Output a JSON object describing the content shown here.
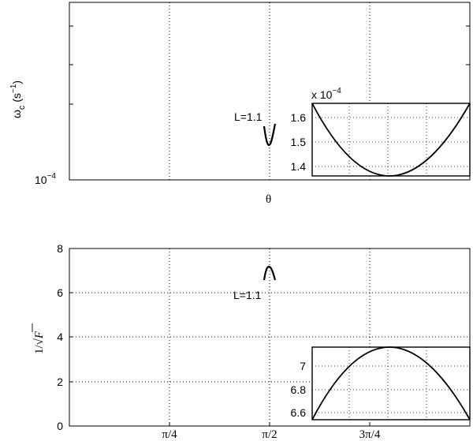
{
  "chart_data": [
    {
      "type": "line",
      "id": "top",
      "ylabel_main": "ω",
      "ylabel_sub": "c",
      "ylabel_unit": " (s",
      "ylabel_exp": "−1",
      "ylabel_close": ")",
      "xlabel": "θ",
      "y_scale": "log",
      "y_tick_label_base": "10",
      "y_tick_label_exp": "−4",
      "grid": true,
      "annotation": "L=1.1",
      "series": [
        {
          "values": [
            [
              1.5708,
              0.000148
            ],
            [
              1.5798,
              0.0001435
            ],
            [
              1.5888,
              0.0001405
            ],
            [
              1.5978,
              0.000139
            ],
            [
              1.6068,
              0.0001385
            ],
            [
              1.6158,
              0.000139
            ],
            [
              1.6248,
              0.0001405
            ],
            [
              1.6338,
              0.0001435
            ],
            [
              1.6428,
              0.000148
            ],
            [
              1.6518,
              0.000155
            ],
            [
              1.6608,
              0.000163
            ]
          ]
        }
      ],
      "inset": {
        "multiplier_prefix": "x 10",
        "multiplier_exp": "−4",
        "y_ticks": [
          "1.6",
          "1.5",
          "1.4"
        ],
        "ylim": [
          1.36,
          1.64
        ]
      }
    },
    {
      "type": "line",
      "id": "bottom",
      "ylabel_prefix": "1/",
      "ylabel_var": "F",
      "xlabel": "",
      "ylim": [
        0,
        8
      ],
      "y_ticks": [
        "0",
        "2",
        "4",
        "6",
        "8"
      ],
      "x_ticks": [
        "π/4",
        "π/2",
        "3π/4"
      ],
      "grid": true,
      "annotation": "L=1.1",
      "series": [
        {
          "values": [
            [
              1.5708,
              6.55
            ],
            [
              1.5798,
              6.8
            ],
            [
              1.5888,
              6.97
            ],
            [
              1.5978,
              7.08
            ],
            [
              1.6068,
              7.14
            ],
            [
              1.6158,
              7.15
            ],
            [
              1.6248,
              7.12
            ],
            [
              1.6338,
              7.04
            ],
            [
              1.6428,
              6.92
            ],
            [
              1.6518,
              6.75
            ],
            [
              1.6608,
              6.55
            ]
          ]
        }
      ],
      "inset": {
        "y_ticks": [
          "7",
          "6.8",
          "6.6"
        ],
        "ylim": [
          6.55,
          7.15
        ]
      }
    }
  ]
}
